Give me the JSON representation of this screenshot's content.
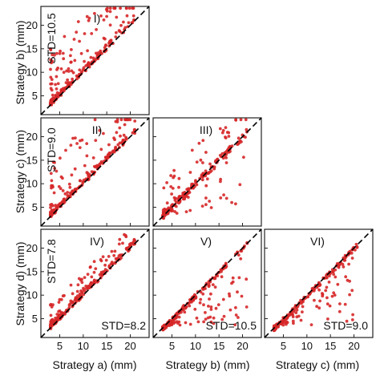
{
  "chart_data": {
    "type": "scatter",
    "layout": "lower-triangular scatter matrix",
    "axis_range": [
      1,
      24
    ],
    "ticks": [
      5,
      10,
      15,
      20
    ],
    "tick_labels": [
      "5",
      "10",
      "15",
      "20"
    ],
    "reference_line": "y = x (dashed, black)",
    "point_color": "#d62728",
    "row_labels": [
      "Strategy b) (mm)",
      "Strategy c) (mm)",
      "Strategy d) (mm)"
    ],
    "col_labels": [
      "Strategy a) (mm)",
      "Strategy b) (mm)",
      "Strategy c) (mm)"
    ],
    "panels": [
      {
        "id": "I)",
        "row": 0,
        "col": 0,
        "std": "STD=10.5",
        "std_orientation": "vertical",
        "xlabel": "Strategy a) (mm)",
        "ylabel": "Strategy b) (mm)",
        "seed": 11,
        "pattern": "above"
      },
      {
        "id": "II)",
        "row": 1,
        "col": 0,
        "std": "STD=9.0",
        "std_orientation": "vertical",
        "xlabel": "Strategy a) (mm)",
        "ylabel": "Strategy c) (mm)",
        "seed": 23,
        "pattern": "above"
      },
      {
        "id": "III)",
        "row": 1,
        "col": 1,
        "std": "",
        "std_orientation": "",
        "xlabel": "Strategy b) (mm)",
        "ylabel": "Strategy c) (mm)",
        "seed": 37,
        "pattern": "both"
      },
      {
        "id": "IV)",
        "row": 2,
        "col": 0,
        "std": "STD=7.8",
        "std_orientation": "vertical",
        "std2": "STD=8.2",
        "xlabel": "Strategy a) (mm)",
        "ylabel": "Strategy d) (mm)",
        "seed": 41,
        "pattern": "above-small"
      },
      {
        "id": "V)",
        "row": 2,
        "col": 1,
        "std": "STD=10.5",
        "std_orientation": "horizontal",
        "xlabel": "Strategy b) (mm)",
        "ylabel": "Strategy d) (mm)",
        "seed": 53,
        "pattern": "below"
      },
      {
        "id": "VI)",
        "row": 2,
        "col": 2,
        "std": "STD=9.0",
        "std_orientation": "horizontal",
        "xlabel": "Strategy c) (mm)",
        "ylabel": "Strategy d) (mm)",
        "seed": 67,
        "pattern": "below"
      }
    ]
  }
}
